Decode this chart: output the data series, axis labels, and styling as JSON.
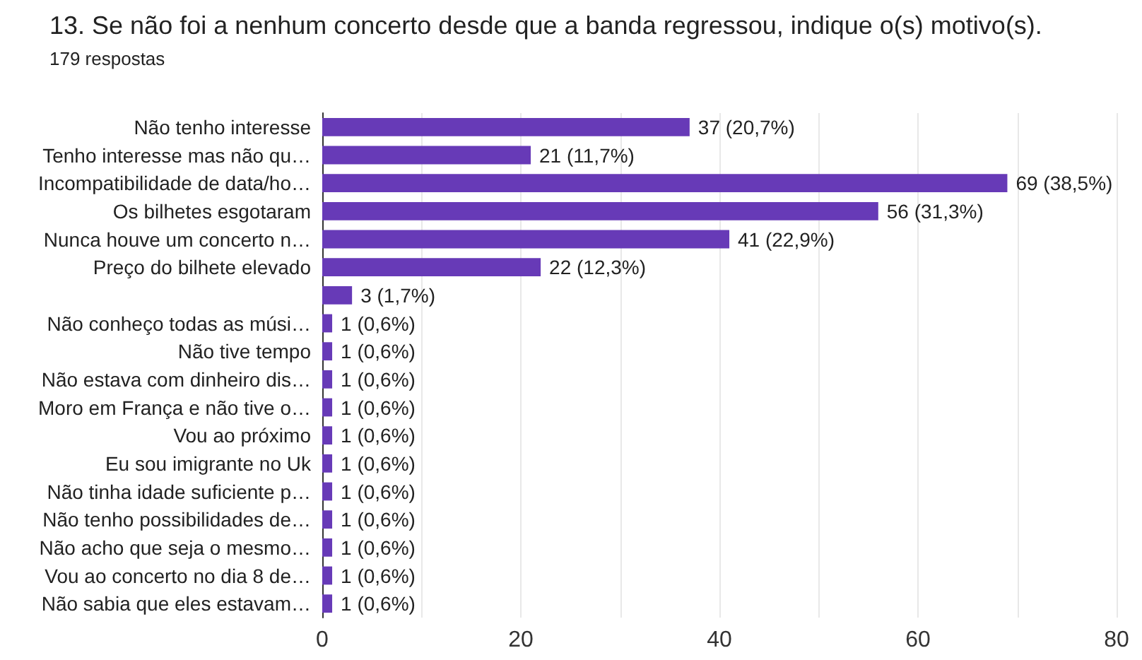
{
  "chart_data": {
    "type": "bar",
    "orientation": "horizontal",
    "title": "13. Se não foi a nenhum concerto desde que a banda regressou, indique o(s) motivo(s).",
    "subtitle": "179 respostas",
    "categories": [
      "Não tenho interesse",
      "Tenho interesse mas não qu…",
      "Incompatibilidade de data/ho…",
      "Os bilhetes esgotaram",
      "Nunca houve um concerto n…",
      "Preço do bilhete elevado",
      null,
      "Não conheço todas as músi…",
      "Não tive tempo",
      "Não estava com dinheiro dis…",
      "Moro em França e não tive o…",
      "Vou ao próximo",
      "Eu sou imigrante no Uk",
      "Não tinha idade suficiente p…",
      "Não tenho possibilidades de…",
      "Não acho que seja o mesmo…",
      "Vou ao concerto no dia 8 de…",
      "Não sabia que eles estavam…"
    ],
    "values": [
      37,
      21,
      69,
      56,
      41,
      22,
      3,
      1,
      1,
      1,
      1,
      1,
      1,
      1,
      1,
      1,
      1,
      1
    ],
    "value_labels": [
      "37 (20,7%)",
      "21 (11,7%)",
      "69 (38,5%)",
      "56 (31,3%)",
      "41 (22,9%)",
      "22 (12,3%)",
      "3 (1,7%)",
      "1 (0,6%)",
      "1 (0,6%)",
      "1 (0,6%)",
      "1 (0,6%)",
      "1 (0,6%)",
      "1 (0,6%)",
      "1 (0,6%)",
      "1 (0,6%)",
      "1 (0,6%)",
      "1 (0,6%)",
      "1 (0,6%)"
    ],
    "color": "#673ab7",
    "xlim": [
      0,
      80
    ],
    "xticks": [
      0,
      {
        "value": 10,
        "label": null
      },
      20,
      {
        "value": 30,
        "label": null
      },
      40,
      {
        "value": 50,
        "label": null
      },
      60,
      {
        "value": 70,
        "label": null
      },
      80
    ],
    "grid": "x"
  }
}
